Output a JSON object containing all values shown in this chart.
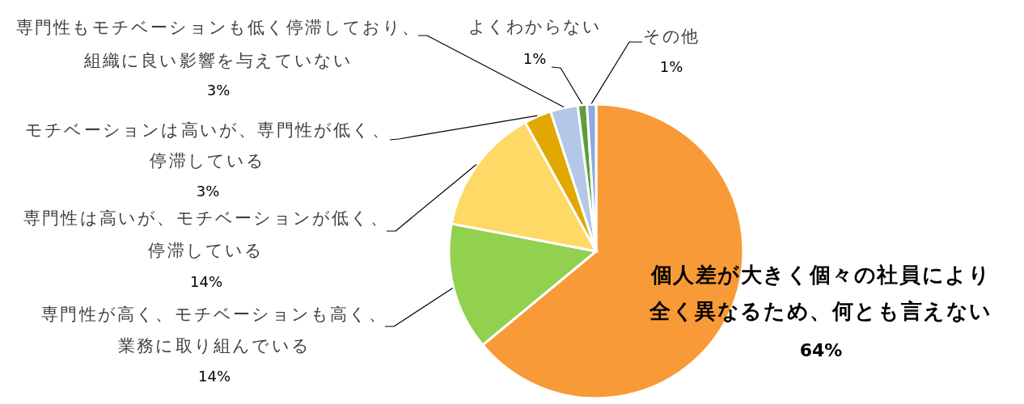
{
  "chart_data": {
    "type": "pie",
    "categories": [
      "個人差が大きく個々の社員により全く異なるため、何とも言えない",
      "専門性が高く、モチベーションも高く、業務に取り組んでいる",
      "専門性は高いが、モチベーションが低く、停滞している",
      "モチベーションは高いが、専門性が低く、停滞している",
      "専門性もモチベーションも低く停滞しており、組織に良い影響を与えていない",
      "よくわからない",
      "その他"
    ],
    "values": [
      64,
      14,
      14,
      3,
      3,
      1,
      1
    ],
    "colors": [
      "#f89a38",
      "#92d050",
      "#ffd966",
      "#e0a800",
      "#b4c7e7",
      "#5e9e3a",
      "#8eaadb"
    ],
    "value_labels": [
      "64%",
      "14%",
      "14%",
      "3%",
      "3%",
      "1%",
      "1%"
    ]
  }
}
